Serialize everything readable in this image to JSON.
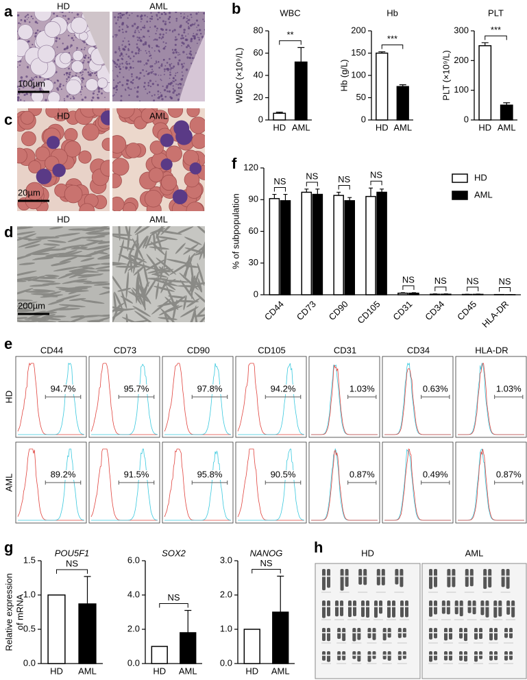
{
  "panel_labels": [
    "a",
    "b",
    "c",
    "d",
    "e",
    "f",
    "g",
    "h"
  ],
  "images": {
    "a": {
      "labels": [
        "HD",
        "AML"
      ],
      "scale": "100µm"
    },
    "c": {
      "labels": [
        "HD",
        "AML"
      ],
      "scale": "20µm"
    },
    "d": {
      "labels": [
        "HD",
        "AML"
      ],
      "scale": "200µm"
    }
  },
  "flow": {
    "markers": [
      "CD44",
      "CD73",
      "CD90",
      "CD105",
      "CD31",
      "CD34",
      "HLA-DR"
    ],
    "rows": [
      {
        "label": "HD",
        "values": [
          "94.7%",
          "95.7%",
          "97.8%",
          "94.2%",
          "1.03%",
          "0.63%",
          "1.03%"
        ]
      },
      {
        "label": "AML",
        "values": [
          "89.2%",
          "91.5%",
          "95.8%",
          "90.5%",
          "0.87%",
          "0.49%",
          "0.87%"
        ]
      }
    ]
  },
  "karyotype": {
    "labels": [
      "HD",
      "AML"
    ]
  },
  "chart_data": [
    {
      "type": "bar",
      "title": "WBC",
      "ylabel": "WBC (×10⁹/L)",
      "categories": [
        "HD",
        "AML"
      ],
      "values": [
        6,
        52
      ],
      "errors": [
        1,
        13
      ],
      "colors": [
        "#ffffff",
        "#000000"
      ],
      "ylim": [
        0,
        80
      ],
      "yticks": [
        0,
        20,
        40,
        60,
        80
      ],
      "annotation": "**"
    },
    {
      "type": "bar",
      "title": "Hb",
      "ylabel": "Hb (g/L)",
      "categories": [
        "HD",
        "AML"
      ],
      "values": [
        150,
        75
      ],
      "errors": [
        3,
        4
      ],
      "colors": [
        "#ffffff",
        "#000000"
      ],
      "ylim": [
        0,
        200
      ],
      "yticks": [
        0,
        50,
        100,
        150,
        200
      ],
      "annotation": "***"
    },
    {
      "type": "bar",
      "title": "PLT",
      "ylabel": "PLT (×10⁹/L)",
      "categories": [
        "HD",
        "AML"
      ],
      "values": [
        250,
        50
      ],
      "errors": [
        10,
        8
      ],
      "colors": [
        "#ffffff",
        "#000000"
      ],
      "ylim": [
        0,
        300
      ],
      "yticks": [
        0,
        100,
        200,
        300
      ],
      "annotation": "***"
    },
    {
      "type": "grouped_bar",
      "ylabel": "% of subpopulation",
      "categories": [
        "CD44",
        "CD73",
        "CD90",
        "CD105",
        "CD31",
        "CD34",
        "CD45",
        "HLA-DR"
      ],
      "series": [
        {
          "name": "HD",
          "color": "#ffffff",
          "values": [
            91,
            97,
            94,
            93,
            1.5,
            0.5,
            0.3,
            0.2
          ],
          "errors": [
            4,
            3,
            3,
            8,
            0.5,
            0.3,
            0.2,
            0.1
          ]
        },
        {
          "name": "AML",
          "color": "#000000",
          "values": [
            89,
            95,
            89,
            97,
            1.5,
            0.5,
            0.4,
            0.1
          ],
          "errors": [
            6,
            5,
            3,
            3,
            0.5,
            0.3,
            0.3,
            0.1
          ]
        }
      ],
      "ylim": [
        0,
        120
      ],
      "yticks": [
        0,
        30,
        60,
        90,
        120
      ],
      "legend": "upper right",
      "annotations": [
        "NS",
        "NS",
        "NS",
        "NS",
        "NS",
        "NS",
        "NS",
        "NS"
      ]
    },
    {
      "type": "bar",
      "title": "POU5F1",
      "ylabel": [
        "Relative expression",
        "of mRNA"
      ],
      "categories": [
        "HD",
        "AML"
      ],
      "values": [
        1.0,
        0.87
      ],
      "errors": [
        null,
        0.4
      ],
      "colors": [
        "#ffffff",
        "#000000"
      ],
      "ylim": [
        0,
        1.5
      ],
      "yticks": [
        {
          "value": 0,
          "label": "0.0"
        },
        {
          "value": 0.5,
          "label": "0.5"
        },
        {
          "value": 1,
          "label": "1.0"
        },
        {
          "value": 1.5,
          "label": "1.5"
        }
      ],
      "annotation": "NS"
    },
    {
      "type": "bar",
      "title": "SOX2",
      "categories": [
        "HD",
        "AML"
      ],
      "values": [
        1.0,
        1.8
      ],
      "errors": [
        null,
        1.3
      ],
      "colors": [
        "#ffffff",
        "#000000"
      ],
      "ylim": [
        0,
        6
      ],
      "yticks": [
        {
          "value": 0,
          "label": "0.0"
        },
        {
          "value": 2,
          "label": "2.0"
        },
        {
          "value": 4,
          "label": "4.0"
        },
        {
          "value": 6,
          "label": "6.0"
        }
      ],
      "annotation": "NS"
    },
    {
      "type": "bar",
      "title": "NANOG",
      "categories": [
        "HD",
        "AML"
      ],
      "values": [
        1.0,
        1.5
      ],
      "errors": [
        null,
        1.05
      ],
      "colors": [
        "#ffffff",
        "#000000"
      ],
      "ylim": [
        0,
        3
      ],
      "yticks": [
        {
          "value": 0,
          "label": "0.0"
        },
        {
          "value": 1,
          "label": "1.0"
        },
        {
          "value": 2,
          "label": "2.0"
        },
        {
          "value": 3,
          "label": "3.0"
        }
      ],
      "annotation": "NS"
    }
  ]
}
